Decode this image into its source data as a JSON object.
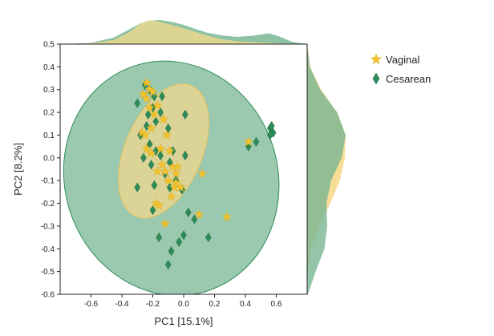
{
  "chart_data": {
    "type": "scatter",
    "title": "",
    "xlabel": "PC1 [15.1%]",
    "ylabel": "PC2 [8.2%]",
    "xlim": [
      -0.8,
      0.8
    ],
    "ylim": [
      -0.6,
      0.5
    ],
    "xticks": [
      -0.6,
      -0.4,
      -0.2,
      0.0,
      0.2,
      0.4,
      0.6
    ],
    "xtick_labels": [
      "-0.6",
      "-0.4",
      "-0.2",
      "0.0",
      "0.2",
      "0.4",
      "0.6"
    ],
    "yticks": [
      0.5,
      0.4,
      0.3,
      0.2,
      0.1,
      0.0,
      -0.1,
      -0.2,
      -0.3,
      -0.4,
      -0.5,
      -0.6
    ],
    "ytick_labels": [
      "0.5",
      "0.4",
      "0.3",
      "0.2",
      "0.1",
      "0.0",
      "-0.1",
      "-0.2",
      "-0.3",
      "-0.4",
      "-0.5",
      "-0.6"
    ],
    "legend_position": "top-right outside",
    "marginal_densities": true,
    "series": [
      {
        "name": "Vaginal",
        "marker": "star",
        "color": "#f2c12e",
        "ellipse": {
          "cx": -0.13,
          "cy": 0.03,
          "rx": 0.46,
          "ry": 0.17,
          "angle_deg": -67,
          "fill": "#f7d98b",
          "stroke": "#e8c45a"
        },
        "points": [
          [
            -0.24,
            0.33
          ],
          [
            -0.22,
            0.3
          ],
          [
            -0.26,
            0.28
          ],
          [
            -0.2,
            0.29
          ],
          [
            -0.24,
            0.26
          ],
          [
            -0.17,
            0.23
          ],
          [
            -0.22,
            0.22
          ],
          [
            -0.19,
            0.19
          ],
          [
            -0.13,
            0.17
          ],
          [
            -0.27,
            0.11
          ],
          [
            -0.25,
            0.1
          ],
          [
            -0.21,
            0.13
          ],
          [
            -0.11,
            0.1
          ],
          [
            -0.24,
            0.04
          ],
          [
            -0.21,
            0.02
          ],
          [
            -0.15,
            0.04
          ],
          [
            -0.09,
            0.03
          ],
          [
            -0.14,
            -0.03
          ],
          [
            -0.12,
            -0.06
          ],
          [
            -0.07,
            -0.04
          ],
          [
            -0.17,
            -0.06
          ],
          [
            -0.05,
            -0.07
          ],
          [
            -0.04,
            -0.04
          ],
          [
            0.12,
            -0.07
          ],
          [
            -0.1,
            -0.1
          ],
          [
            -0.05,
            -0.11
          ],
          [
            -0.02,
            -0.13
          ],
          [
            -0.06,
            -0.13
          ],
          [
            -0.08,
            -0.17
          ],
          [
            -0.18,
            -0.2
          ],
          [
            -0.16,
            -0.21
          ],
          [
            0.1,
            -0.25
          ],
          [
            0.28,
            -0.26
          ],
          [
            -0.12,
            -0.29
          ],
          [
            0.42,
            0.07
          ]
        ]
      },
      {
        "name": "Cesarean",
        "marker": "diamond",
        "color": "#2e8b57",
        "ellipse": {
          "cx": -0.08,
          "cy": -0.09,
          "rx": 0.69,
          "ry": 0.52,
          "angle_deg": -18,
          "fill": "#79b794",
          "stroke": "#2e8b57"
        },
        "points": [
          [
            -0.25,
            0.32
          ],
          [
            -0.22,
            0.3
          ],
          [
            -0.19,
            0.27
          ],
          [
            -0.14,
            0.27
          ],
          [
            -0.3,
            0.24
          ],
          [
            -0.2,
            0.22
          ],
          [
            -0.15,
            0.2
          ],
          [
            -0.23,
            0.19
          ],
          [
            -0.18,
            0.16
          ],
          [
            -0.24,
            0.14
          ],
          [
            -0.1,
            0.13
          ],
          [
            0.01,
            0.19
          ],
          [
            -0.28,
            0.1
          ],
          [
            -0.22,
            0.06
          ],
          [
            -0.18,
            0.03
          ],
          [
            -0.07,
            0.03
          ],
          [
            -0.15,
            0.01
          ],
          [
            0.01,
            0.01
          ],
          [
            -0.26,
            0.0
          ],
          [
            -0.21,
            -0.03
          ],
          [
            -0.09,
            -0.02
          ],
          [
            -0.12,
            -0.07
          ],
          [
            -0.05,
            -0.1
          ],
          [
            -0.19,
            -0.12
          ],
          [
            -0.01,
            -0.14
          ],
          [
            -0.09,
            -0.13
          ],
          [
            -0.3,
            -0.13
          ],
          [
            -0.2,
            -0.23
          ],
          [
            0.03,
            -0.24
          ],
          [
            0.07,
            -0.27
          ],
          [
            -0.16,
            -0.35
          ],
          [
            -0.03,
            -0.37
          ],
          [
            0.0,
            -0.34
          ],
          [
            0.16,
            -0.35
          ],
          [
            -0.08,
            -0.41
          ],
          [
            -0.1,
            -0.47
          ],
          [
            0.56,
            0.13
          ],
          [
            0.57,
            0.14
          ],
          [
            0.58,
            0.11
          ],
          [
            0.56,
            0.1
          ],
          [
            0.47,
            0.07
          ],
          [
            0.42,
            0.05
          ]
        ]
      }
    ],
    "marginal_x": {
      "x": [
        -0.8,
        -0.6,
        -0.45,
        -0.35,
        -0.28,
        -0.22,
        -0.15,
        -0.08,
        0.0,
        0.08,
        0.15,
        0.25,
        0.35,
        0.45,
        0.55,
        0.62,
        0.7,
        0.8
      ],
      "Vaginal": [
        0.0,
        0.03,
        0.18,
        0.5,
        0.85,
        1.0,
        0.92,
        0.8,
        0.66,
        0.5,
        0.36,
        0.2,
        0.12,
        0.08,
        0.06,
        0.03,
        0.01,
        0.0
      ],
      "Cesarean": [
        0.0,
        0.05,
        0.28,
        0.62,
        0.86,
        0.97,
        1.0,
        0.93,
        0.8,
        0.62,
        0.48,
        0.36,
        0.3,
        0.35,
        0.45,
        0.32,
        0.1,
        0.0
      ]
    },
    "marginal_y": {
      "y": [
        -0.6,
        -0.5,
        -0.4,
        -0.3,
        -0.2,
        -0.1,
        0.0,
        0.1,
        0.2,
        0.3,
        0.4,
        0.5
      ],
      "Vaginal": [
        0.0,
        0.02,
        0.1,
        0.3,
        0.6,
        0.85,
        0.98,
        1.0,
        0.78,
        0.36,
        0.08,
        0.0
      ],
      "Cesarean": [
        0.02,
        0.22,
        0.45,
        0.52,
        0.5,
        0.62,
        0.9,
        1.0,
        0.78,
        0.34,
        0.07,
        0.0
      ]
    }
  }
}
